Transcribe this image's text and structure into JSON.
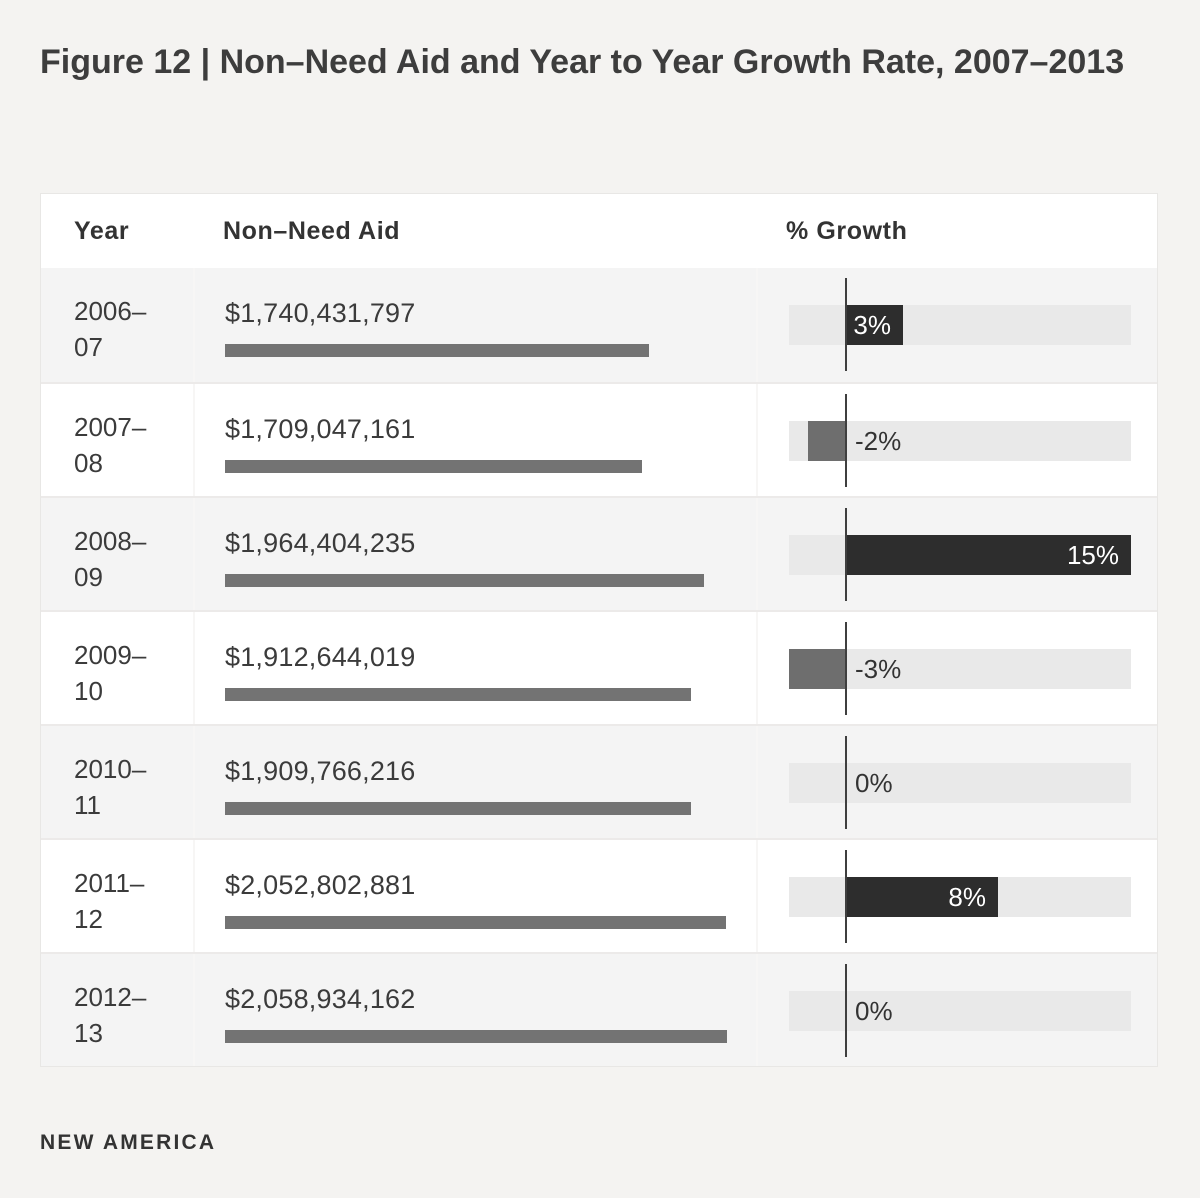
{
  "title": "Figure 12 | Non–Need Aid and Year to Year Growth Rate, 2007–2013",
  "footer": {
    "logo": "NEW AMERICA"
  },
  "table": {
    "headers": [
      "Year",
      "Non–Need Aid",
      "% Growth"
    ],
    "rows": [
      {
        "year": "2006–07",
        "aid": "$1,740,431,797",
        "growth_label": "3%"
      },
      {
        "year": "2007–08",
        "aid": "$1,709,047,161",
        "growth_label": "-2%"
      },
      {
        "year": "2008–09",
        "aid": "$1,964,404,235",
        "growth_label": "15%"
      },
      {
        "year": "2009–10",
        "aid": "$1,912,644,019",
        "growth_label": "-3%"
      },
      {
        "year": "2010–11",
        "aid": "$1,909,766,216",
        "growth_label": "0%"
      },
      {
        "year": "2011–12",
        "aid": "$2,052,802,881",
        "growth_label": "8%"
      },
      {
        "year": "2012–13",
        "aid": "$2,058,934,162",
        "growth_label": "0%"
      }
    ]
  },
  "colors": {
    "positive_bar": "#2d2d2d",
    "negative_bar": "#6e6e6e",
    "aid_bar": "#737373",
    "track": "#e9e9e9",
    "zero_line": "#3f3f3f",
    "text_dark": "#3b3b3b",
    "page_background": "#f4f3f1",
    "row_gray": "#f4f4f4"
  },
  "chart_data": {
    "type": "bar",
    "title": "Figure 12 | Non–Need Aid and Year to Year Growth Rate, 2007–2013",
    "categories": [
      "2006–07",
      "2007–08",
      "2008–09",
      "2009–10",
      "2010–11",
      "2011–12",
      "2012–13"
    ],
    "series": [
      {
        "name": "Non–Need Aid (USD)",
        "values": [
          1740431797,
          1709047161,
          1964404235,
          1912644019,
          1909766216,
          2052802881,
          2058934162
        ]
      },
      {
        "name": "% Growth",
        "values": [
          3,
          -2,
          15,
          -3,
          0,
          8,
          0
        ]
      }
    ],
    "growth_axis_range": [
      -3,
      15
    ],
    "aid_axis_range": [
      0,
      2058934162
    ],
    "legend": "none",
    "grid": "off",
    "orientation": "horizontal"
  }
}
